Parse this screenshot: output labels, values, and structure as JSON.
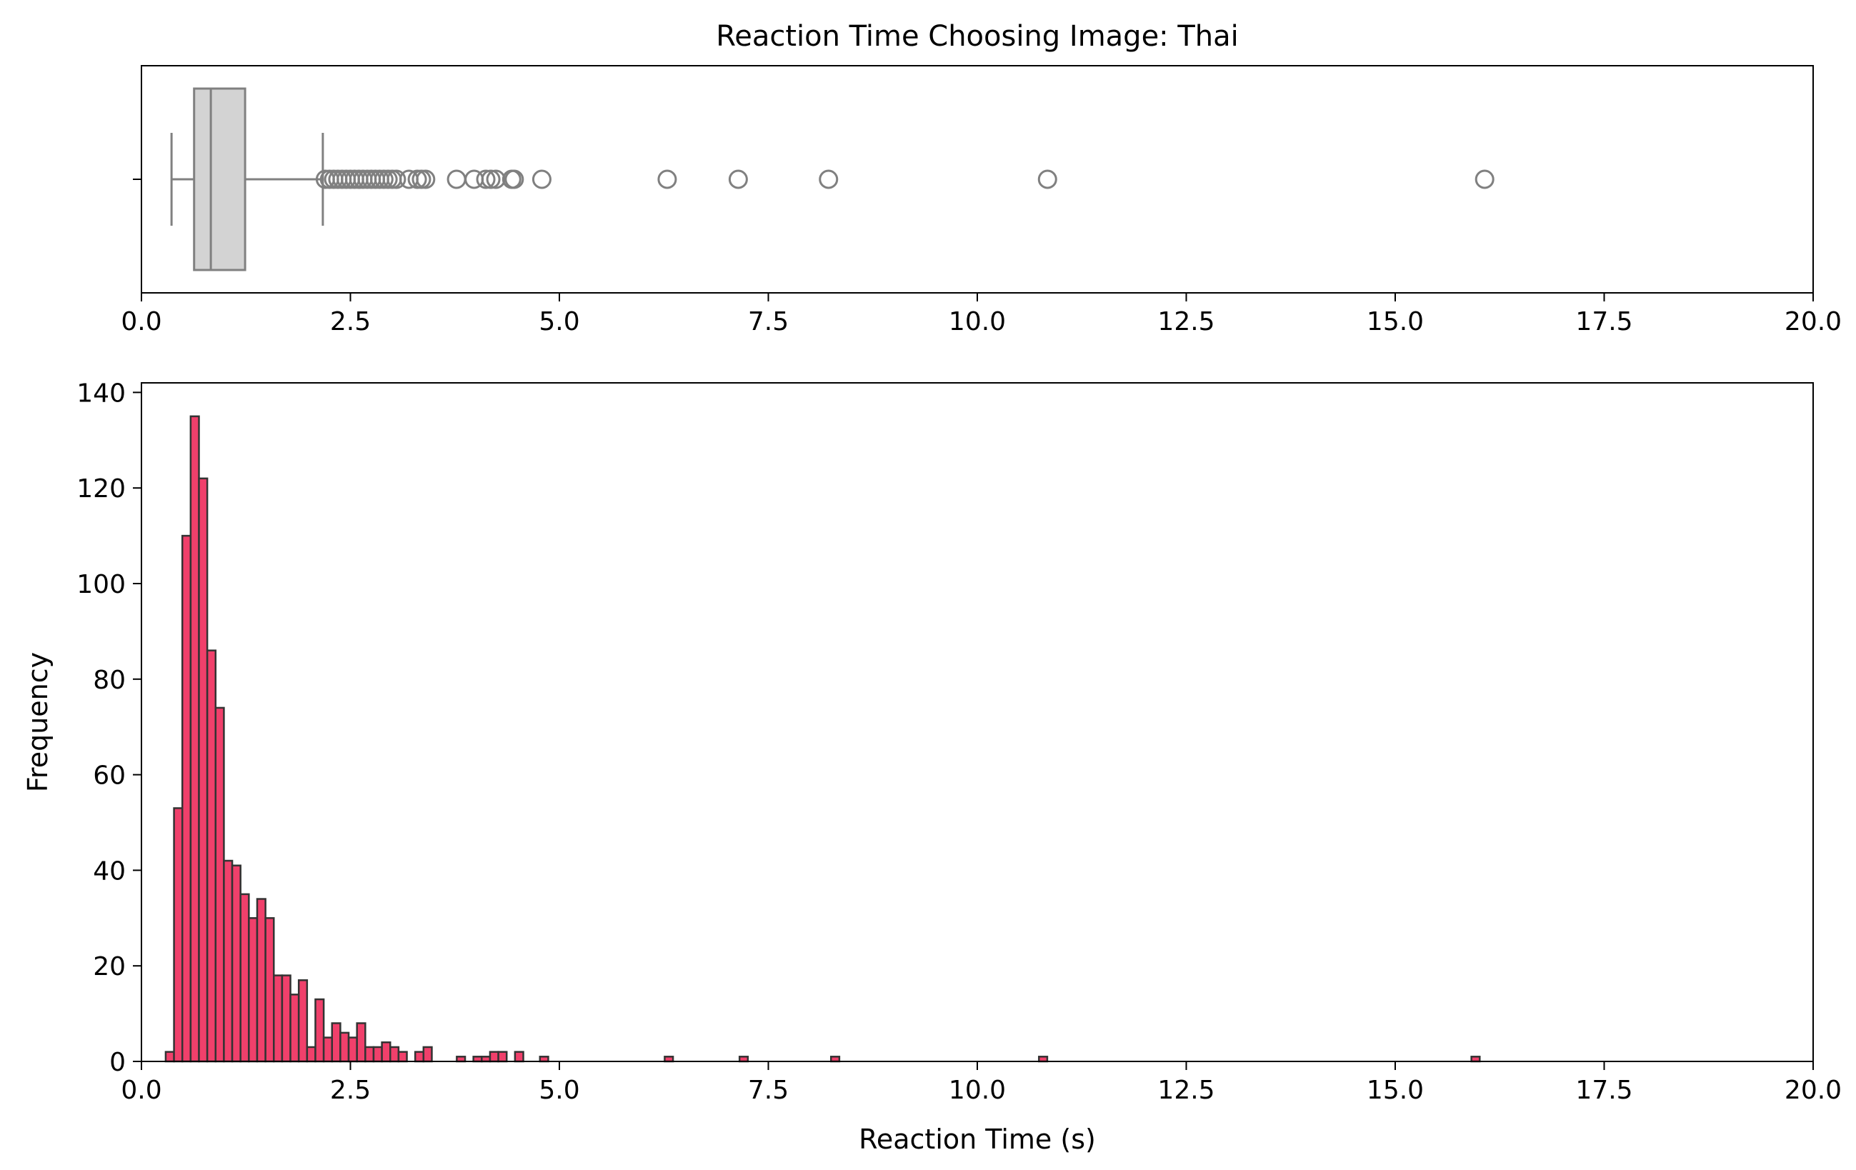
{
  "chart_data": [
    {
      "type": "box",
      "title": "Reaction Time Choosing Image: Thai",
      "xlim": [
        0,
        20
      ],
      "xticks": [
        "0.0",
        "2.5",
        "5.0",
        "7.5",
        "10.0",
        "12.5",
        "15.0",
        "17.5",
        "20.0"
      ],
      "whisker_low": 0.36,
      "q1": 0.63,
      "median": 0.83,
      "q3": 1.24,
      "whisker_high": 2.17,
      "outliers": [
        2.2,
        2.25,
        2.3,
        2.35,
        2.4,
        2.45,
        2.5,
        2.55,
        2.6,
        2.65,
        2.7,
        2.75,
        2.8,
        2.85,
        2.9,
        2.95,
        3.0,
        3.05,
        3.2,
        3.3,
        3.35,
        3.4,
        3.77,
        3.98,
        4.12,
        4.18,
        4.24,
        4.43,
        4.46,
        4.79,
        6.29,
        7.14,
        8.22,
        10.84,
        16.07
      ],
      "box_color": "#d3d3d3",
      "line_color": "#808080"
    },
    {
      "type": "bar",
      "subtype": "histogram",
      "xlabel": "Reaction Time (s)",
      "ylabel": "Frequency",
      "xlim": [
        0,
        20
      ],
      "ylim": [
        0,
        142
      ],
      "xticks": [
        "0.0",
        "2.5",
        "5.0",
        "7.5",
        "10.0",
        "12.5",
        "15.0",
        "17.5",
        "20.0"
      ],
      "yticks": [
        "0",
        "20",
        "40",
        "60",
        "80",
        "100",
        "120",
        "140"
      ],
      "bin_start": 0.29,
      "bin_width": 0.0995,
      "counts": [
        2,
        53,
        110,
        135,
        122,
        86,
        74,
        42,
        41,
        35,
        30,
        34,
        30,
        18,
        18,
        14,
        17,
        3,
        13,
        5,
        8,
        6,
        5,
        8,
        3,
        3,
        4,
        3,
        2,
        0,
        2,
        3,
        0,
        0,
        0,
        1,
        0,
        1,
        1,
        2,
        2,
        0,
        2,
        0,
        0,
        1,
        0,
        0,
        0,
        0,
        0,
        0,
        0,
        0,
        0,
        0,
        0,
        0,
        0,
        0,
        1,
        0,
        0,
        0,
        0,
        0,
        0,
        0,
        0,
        1,
        0,
        0,
        0,
        0,
        0,
        0,
        0,
        0,
        0,
        0,
        1,
        0,
        0,
        0,
        0,
        0,
        0,
        0,
        0,
        0,
        0,
        0,
        0,
        0,
        0,
        0,
        0,
        0,
        0,
        0,
        0,
        0,
        0,
        0,
        0,
        1,
        0,
        0,
        0,
        0,
        0,
        0,
        0,
        0,
        0,
        0,
        0,
        0,
        0,
        0,
        0,
        0,
        0,
        0,
        0,
        0,
        0,
        0,
        0,
        0,
        0,
        0,
        0,
        0,
        0,
        0,
        0,
        0,
        0,
        0,
        0,
        0,
        0,
        0,
        0,
        0,
        0,
        0,
        0,
        0,
        0,
        0,
        0,
        0,
        0,
        0,
        0,
        1
      ],
      "bar_color": "#f0406b",
      "edge_color": "#333333"
    }
  ]
}
